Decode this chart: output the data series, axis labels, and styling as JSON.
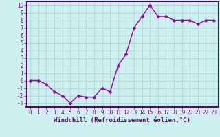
{
  "x": [
    0,
    1,
    2,
    3,
    4,
    5,
    6,
    7,
    8,
    9,
    10,
    11,
    12,
    13,
    14,
    15,
    16,
    17,
    18,
    19,
    20,
    21,
    22,
    23
  ],
  "y": [
    0,
    0,
    -0.5,
    -1.5,
    -2,
    -3,
    -2,
    -2.2,
    -2.2,
    -1,
    -1.5,
    2,
    3.5,
    7,
    8.5,
    10,
    8.5,
    8.5,
    8,
    8,
    8,
    7.5,
    8,
    8
  ],
  "line_color": "#990099",
  "marker": "D",
  "marker_size": 2.5,
  "background_color": "#ccf0f0",
  "grid_color": "#aacccc",
  "xlabel": "Windchill (Refroidissement éolien,°C)",
  "xlabel_fontsize": 6.5,
  "ylim": [
    -3.5,
    10.5
  ],
  "xlim": [
    -0.5,
    23.5
  ],
  "yticks": [
    -3,
    -2,
    -1,
    0,
    1,
    2,
    3,
    4,
    5,
    6,
    7,
    8,
    9,
    10
  ],
  "xticks": [
    0,
    1,
    2,
    3,
    4,
    5,
    6,
    7,
    8,
    9,
    10,
    11,
    12,
    13,
    14,
    15,
    16,
    17,
    18,
    19,
    20,
    21,
    22,
    23
  ],
  "tick_fontsize": 5.5,
  "line_width": 1.0,
  "spine_color": "#660066",
  "text_color": "#660066"
}
